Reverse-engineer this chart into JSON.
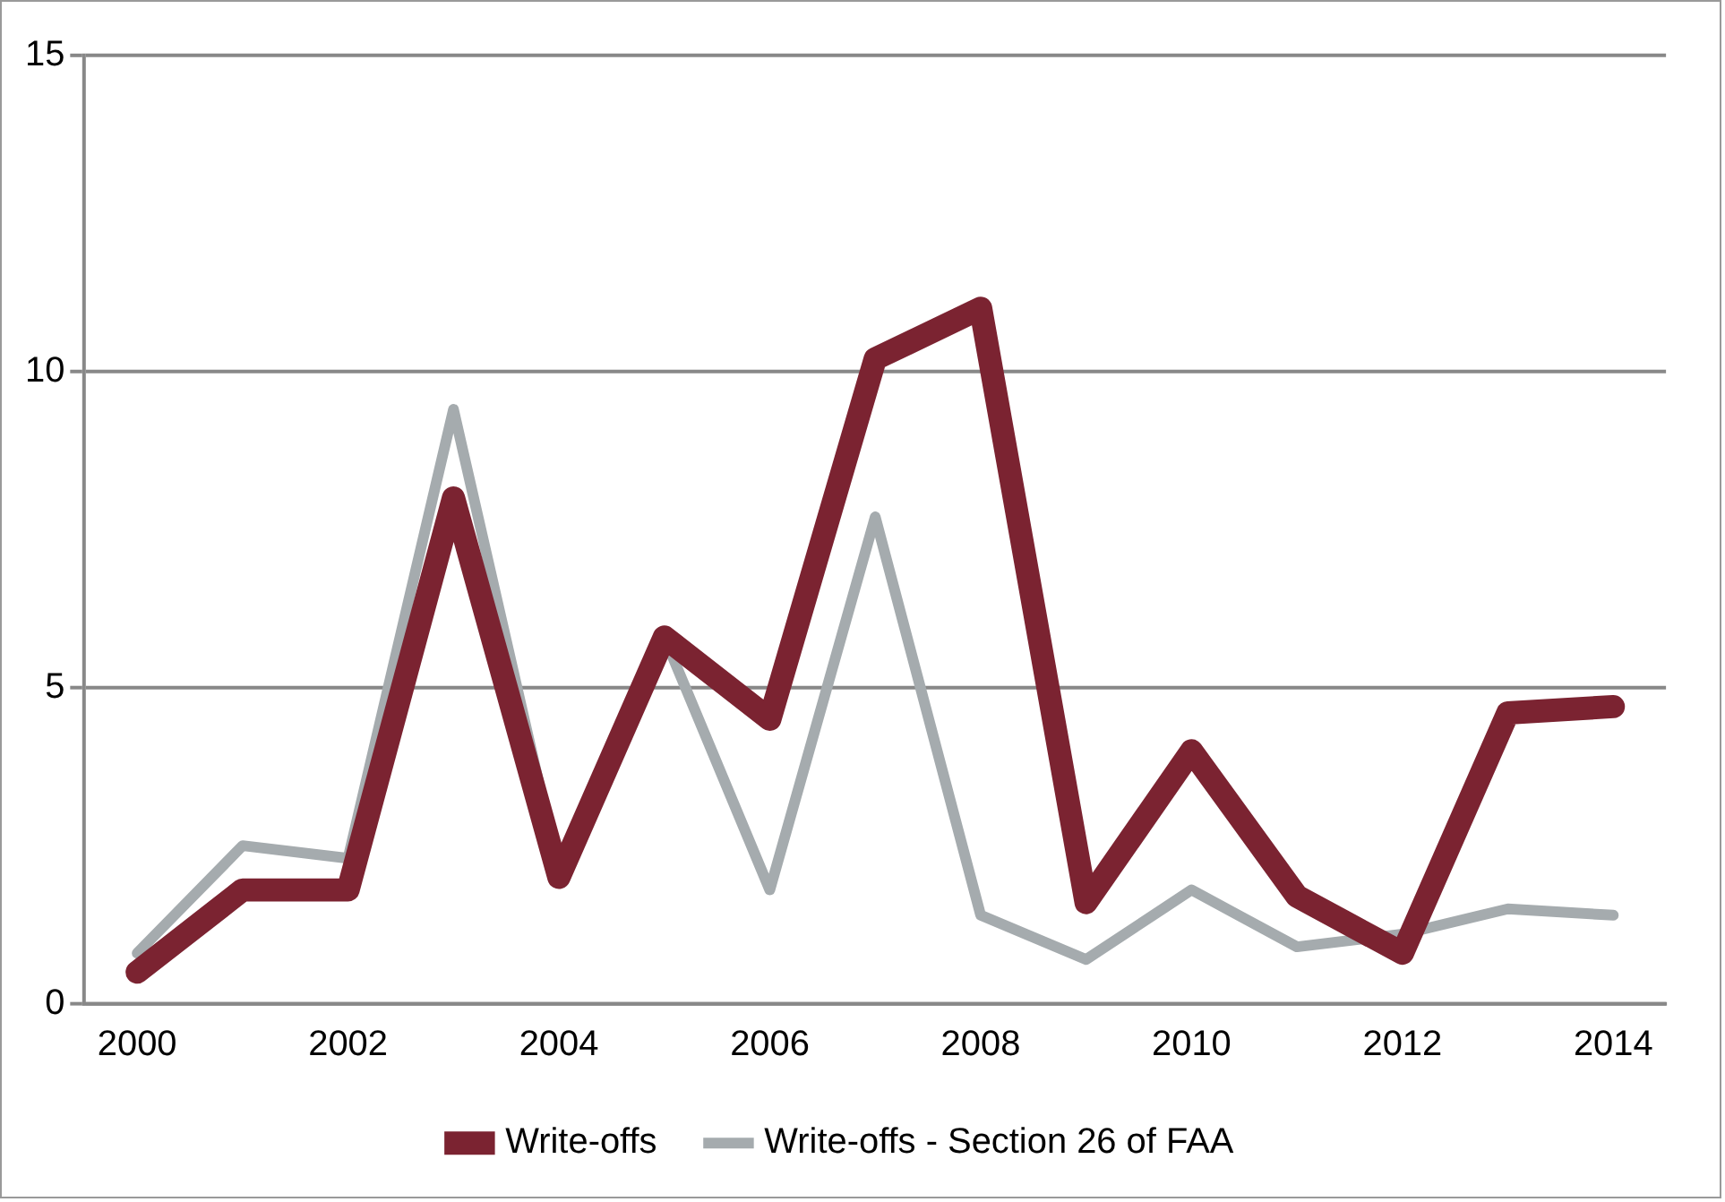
{
  "chart_data": {
    "type": "line",
    "categories": [
      "2000",
      null,
      "2002",
      null,
      "2004",
      null,
      "2006",
      null,
      "2008",
      null,
      "2010",
      null,
      "2012",
      null,
      "2014"
    ],
    "series": [
      {
        "name": "Write-offs",
        "color": "#7b2331",
        "values": [
          0.5,
          1.8,
          1.8,
          8.0,
          2.0,
          5.8,
          4.5,
          10.2,
          11.0,
          1.6,
          4.0,
          1.7,
          0.8,
          4.6,
          4.7
        ]
      },
      {
        "name": "Write-offs - Section 26 of FAA",
        "color": "#a5abae",
        "values": [
          0.8,
          2.5,
          2.3,
          9.4,
          2.1,
          5.8,
          1.8,
          7.7,
          1.4,
          0.7,
          1.8,
          0.9,
          1.1,
          1.5,
          1.4
        ]
      }
    ],
    "ylim": [
      0,
      15
    ],
    "yticks": [
      0,
      5,
      10,
      15
    ],
    "grid": "y",
    "legend": "bottom",
    "marker": "none",
    "line_style": "solid"
  }
}
